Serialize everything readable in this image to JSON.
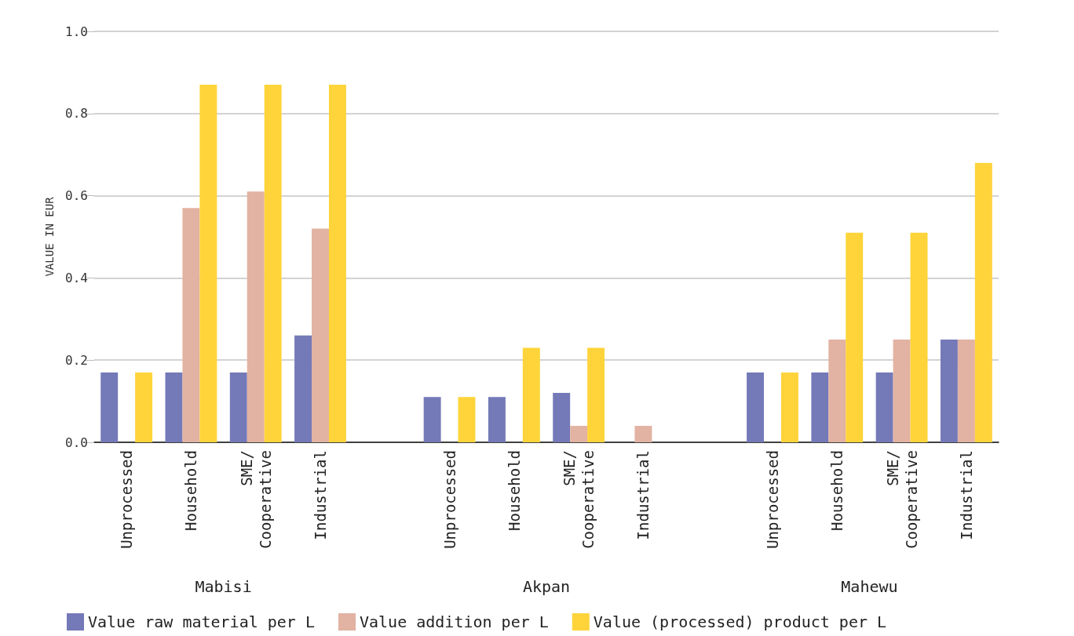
{
  "chart_data": {
    "type": "bar",
    "ylabel": "VALUE IN EUR",
    "categories": [
      "Unprocessed",
      "Household",
      "SME/\nCooperative",
      "Industrial",
      null,
      "Unprocessed",
      "Household",
      "SME/\nCooperative",
      "Industrial",
      null,
      "Unprocessed",
      "Household",
      "SME/\nCooperative",
      "Industrial"
    ],
    "series": [
      {
        "name": "Value raw material per L",
        "color": "#7479b8",
        "values": [
          0.17,
          0.17,
          0.17,
          0.26,
          null,
          0.11,
          0.11,
          0.12,
          null,
          null,
          0.17,
          0.17,
          0.17,
          0.25
        ]
      },
      {
        "name": "Value addition per L",
        "color": "#e2b2a2",
        "values": [
          null,
          0.57,
          0.61,
          0.52,
          null,
          null,
          null,
          0.04,
          0.04,
          null,
          null,
          0.25,
          0.25,
          0.25
        ]
      },
      {
        "name": "Value (processed) product per L",
        "color": "#fed43a",
        "values": [
          0.17,
          0.87,
          0.87,
          0.87,
          null,
          0.11,
          0.23,
          0.23,
          null,
          null,
          0.17,
          0.51,
          0.51,
          0.68
        ]
      }
    ],
    "ylim": [
      0,
      1
    ],
    "yticks": [
      {
        "value": 0,
        "label": "0.0"
      },
      0.2,
      0.4,
      0.6,
      0.8,
      {
        "value": 1,
        "label": "1.0"
      }
    ],
    "grid": "y",
    "legend": "bottom",
    "annotations": [
      "Mabisi",
      "Akpan",
      "Mahewu"
    ]
  }
}
